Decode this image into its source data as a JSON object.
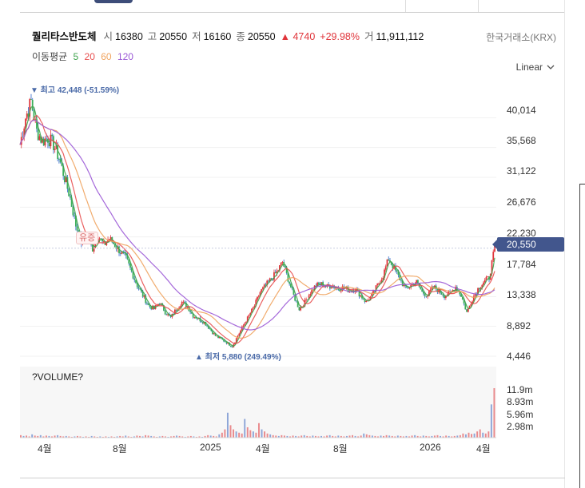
{
  "header": {
    "name": "퀄리타스반도체",
    "open_label": "시",
    "open": "16380",
    "high_label": "고",
    "high": "20550",
    "low_label": "저",
    "low": "16160",
    "close_label": "종",
    "close": "20550",
    "change": "▲ 4740",
    "change_pct": "+29.98%",
    "volume_label": "거",
    "volume": "11,911,112",
    "exchange": "한국거래소(KRX)"
  },
  "moving_average": {
    "label": "이동평균",
    "periods": [
      "5",
      "20",
      "60",
      "120"
    ],
    "colors": [
      "#3fa34d",
      "#e84f4f",
      "#f0a35e",
      "#9b59d6"
    ]
  },
  "scale_selector": {
    "label": "Linear"
  },
  "current_price_tag": "20,550",
  "high_annotation": "▼ 최고 42,448 (-51.59%)",
  "low_annotation": "▲ 최저 5,880 (249.49%)",
  "event_marker": "유증",
  "volume_panel": {
    "title": "?VOLUME?",
    "ticks": [
      "11.9m",
      "8.93m",
      "5.96m",
      "2.98m"
    ]
  },
  "chart_data": {
    "type": "line",
    "x_ticks": [
      "4월",
      "8월",
      "2025",
      "4월",
      "8월",
      "2026",
      "4월"
    ],
    "y_ticks": [
      "40,014",
      "35,568",
      "31,122",
      "26,676",
      "22,230",
      "17,784",
      "13,338",
      "8,892",
      "4,446"
    ],
    "ylim": [
      4446,
      44460
    ],
    "series": [
      {
        "name": "5",
        "color": "#3fa34d"
      },
      {
        "name": "20",
        "color": "#e84f4f"
      },
      {
        "name": "60",
        "color": "#f0a35e"
      },
      {
        "name": "120",
        "color": "#9b59d6"
      }
    ],
    "price_points": [
      [
        0,
        36000
      ],
      [
        2,
        40000
      ],
      [
        4,
        42448
      ],
      [
        6,
        38000
      ],
      [
        8,
        36500
      ],
      [
        10,
        37000
      ],
      [
        12,
        36000
      ],
      [
        14,
        34000
      ],
      [
        16,
        31000
      ],
      [
        18,
        28000
      ],
      [
        20,
        24000
      ],
      [
        22,
        21500
      ],
      [
        24,
        22000
      ],
      [
        26,
        20500
      ],
      [
        28,
        22500
      ],
      [
        30,
        21000
      ],
      [
        32,
        22000
      ],
      [
        34,
        21000
      ],
      [
        36,
        20000
      ],
      [
        38,
        19000
      ],
      [
        40,
        17000
      ],
      [
        42,
        15000
      ],
      [
        44,
        13500
      ],
      [
        46,
        12000
      ],
      [
        48,
        11500
      ],
      [
        50,
        12500
      ],
      [
        52,
        11000
      ],
      [
        54,
        10200
      ],
      [
        56,
        11500
      ],
      [
        58,
        12500
      ],
      [
        60,
        11800
      ],
      [
        62,
        10500
      ],
      [
        64,
        10000
      ],
      [
        66,
        9500
      ],
      [
        68,
        8500
      ],
      [
        70,
        7500
      ],
      [
        72,
        7000
      ],
      [
        74,
        6500
      ],
      [
        76,
        5880
      ],
      [
        78,
        7500
      ],
      [
        80,
        9000
      ],
      [
        82,
        10500
      ],
      [
        84,
        12000
      ],
      [
        86,
        14000
      ],
      [
        88,
        15000
      ],
      [
        90,
        16000
      ],
      [
        92,
        17000
      ],
      [
        94,
        18500
      ],
      [
        96,
        16000
      ],
      [
        98,
        13500
      ],
      [
        100,
        11500
      ],
      [
        102,
        12500
      ],
      [
        104,
        14000
      ],
      [
        106,
        15000
      ],
      [
        108,
        15200
      ],
      [
        110,
        14800
      ],
      [
        112,
        15000
      ],
      [
        114,
        14500
      ],
      [
        116,
        14700
      ],
      [
        118,
        14200
      ],
      [
        120,
        14500
      ],
      [
        122,
        13500
      ],
      [
        124,
        12500
      ],
      [
        126,
        13500
      ],
      [
        128,
        15000
      ],
      [
        130,
        16500
      ],
      [
        132,
        19000
      ],
      [
        134,
        17500
      ],
      [
        136,
        16000
      ],
      [
        138,
        14500
      ],
      [
        140,
        15000
      ],
      [
        142,
        15500
      ],
      [
        144,
        14000
      ],
      [
        146,
        13500
      ],
      [
        148,
        14800
      ],
      [
        150,
        14200
      ],
      [
        152,
        13500
      ],
      [
        154,
        13800
      ],
      [
        156,
        14800
      ],
      [
        158,
        13500
      ],
      [
        160,
        11000
      ],
      [
        162,
        13000
      ],
      [
        164,
        14500
      ],
      [
        166,
        15500
      ],
      [
        168,
        16160
      ],
      [
        170,
        20550
      ]
    ],
    "volume_points": [
      0.6,
      0.4,
      0.5,
      0.3,
      0.8,
      0.5,
      0.4,
      0.6,
      0.3,
      0.5,
      0.4,
      0.3,
      0.5,
      0.6,
      0.4,
      0.3,
      0.4,
      0.3,
      0.2,
      0.3,
      0.4,
      0.3,
      0.2,
      0.3,
      0.2,
      0.4,
      0.3,
      0.2,
      0.3,
      0.2,
      0.3,
      0.2,
      0.3,
      0.2,
      0.3,
      0.4,
      0.3,
      0.5,
      0.3,
      0.2,
      0.3,
      0.5,
      0.4,
      0.3,
      0.6,
      0.5,
      0.4,
      0.3,
      0.2,
      0.3,
      0.4,
      0.3,
      0.2,
      0.3,
      0.4,
      0.5,
      0.4,
      0.3,
      0.2,
      0.3,
      0.4,
      0.3,
      0.2,
      0.3,
      0.2,
      0.4,
      0.6,
      0.5,
      0.4,
      0.3,
      0.8,
      1.2,
      2.0,
      6.0,
      3.0,
      2.0,
      1.5,
      1.2,
      1.0,
      4.5,
      2.5,
      1.8,
      1.5,
      1.2,
      3.5,
      2.0,
      1.5,
      1.0,
      0.8,
      0.6,
      0.5,
      0.4,
      0.6,
      0.5,
      0.4,
      0.3,
      0.5,
      0.4,
      0.3,
      0.5,
      0.6,
      0.4,
      0.3,
      0.5,
      0.4,
      0.3,
      0.4,
      0.3,
      0.5,
      0.6,
      0.4,
      0.3,
      0.5,
      0.4,
      0.3,
      0.4,
      0.5,
      0.6,
      0.4,
      0.3,
      0.5,
      1.0,
      0.8,
      0.6,
      0.5,
      0.4,
      0.3,
      0.5,
      0.4,
      0.6,
      0.5,
      0.4,
      0.3,
      0.5,
      0.4,
      0.3,
      0.4,
      0.3,
      0.5,
      0.6,
      0.4,
      0.3,
      0.5,
      0.4,
      0.3,
      0.4,
      0.5,
      0.6,
      0.4,
      0.3,
      0.5,
      0.4,
      0.3,
      0.4,
      0.5,
      0.6,
      1.0,
      0.8,
      1.2,
      0.9,
      1.0,
      1.5,
      2.0,
      1.2,
      1.0,
      1.5,
      8.0,
      11.9
    ]
  }
}
